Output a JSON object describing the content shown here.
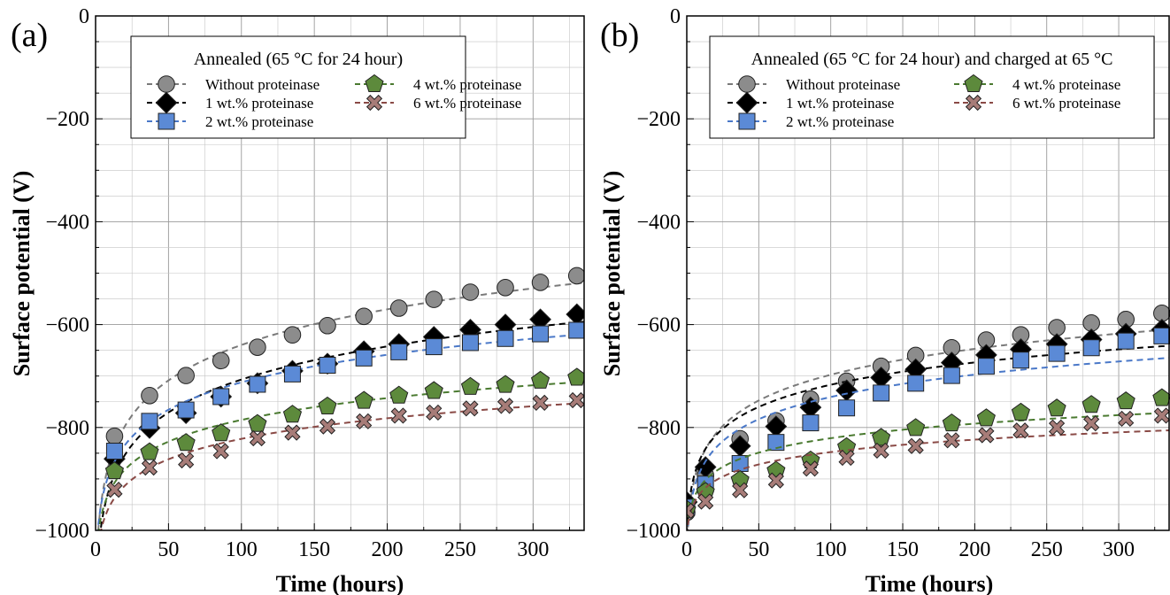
{
  "chart_data": [
    {
      "type": "scatter",
      "panel_label": "(a)",
      "title": "Annealed (65 °C for 24 hour)",
      "xlabel": "Time (hours)",
      "ylabel": "Surface potential (V)",
      "xlim": [
        0,
        335
      ],
      "ylim": [
        -1000,
        0
      ],
      "xticks": [
        0,
        50,
        100,
        150,
        200,
        250,
        300
      ],
      "yticks": [
        0,
        -200,
        -400,
        -600,
        -800,
        -1000
      ],
      "grid": true,
      "legend_position": "top-right",
      "series": [
        {
          "name": "Without proteinase",
          "marker": "circle",
          "color": "#8c8c8c",
          "line_color": "#7a7a7a",
          "x": [
            13,
            37,
            62,
            86,
            111,
            135,
            159,
            184,
            208,
            232,
            257,
            281,
            305,
            330
          ],
          "y": [
            -817,
            -738,
            -699,
            -670,
            -644,
            -620,
            -602,
            -584,
            -568,
            -551,
            -537,
            -528,
            -518,
            -505
          ]
        },
        {
          "name": "1 wt.% proteinase",
          "marker": "diamond",
          "color": "#000000",
          "line_color": "#000000",
          "x": [
            13,
            37,
            62,
            86,
            111,
            135,
            159,
            184,
            208,
            232,
            257,
            281,
            305,
            330
          ],
          "y": [
            -861,
            -801,
            -772,
            -740,
            -714,
            -690,
            -676,
            -652,
            -638,
            -624,
            -610,
            -600,
            -590,
            -580
          ]
        },
        {
          "name": "2 wt.% proteinase",
          "marker": "square",
          "color": "#5b8ad6",
          "line_color": "#4a78c8",
          "x": [
            13,
            37,
            62,
            86,
            111,
            135,
            159,
            184,
            208,
            232,
            257,
            281,
            305,
            330
          ],
          "y": [
            -846,
            -788,
            -766,
            -740,
            -716,
            -696,
            -679,
            -665,
            -653,
            -643,
            -635,
            -627,
            -618,
            -611
          ]
        },
        {
          "name": "4 wt.% proteinase",
          "marker": "pentagon",
          "color": "#5d8a3c",
          "line_color": "#4a7a30",
          "x": [
            13,
            37,
            62,
            86,
            111,
            135,
            159,
            184,
            208,
            232,
            257,
            281,
            305,
            330
          ],
          "y": [
            -885,
            -848,
            -830,
            -811,
            -793,
            -775,
            -759,
            -748,
            -738,
            -729,
            -721,
            -717,
            -709,
            -703
          ]
        },
        {
          "name": "6 wt.% proteinase",
          "marker": "x",
          "color": "#a77c78",
          "line_color": "#8a4a46",
          "x": [
            13,
            37,
            62,
            86,
            111,
            135,
            159,
            184,
            208,
            232,
            257,
            281,
            305,
            330
          ],
          "y": [
            -921,
            -878,
            -864,
            -846,
            -821,
            -810,
            -798,
            -788,
            -777,
            -771,
            -763,
            -758,
            -752,
            -747
          ]
        }
      ]
    },
    {
      "type": "scatter",
      "panel_label": "(b)",
      "title": "Annealed (65 °C for 24 hour) and charged at 65 °C",
      "xlabel": "Time (hours)",
      "ylabel": "Surface potential (V)",
      "xlim": [
        0,
        335
      ],
      "ylim": [
        -1000,
        0
      ],
      "xticks": [
        0,
        50,
        100,
        150,
        200,
        250,
        300
      ],
      "yticks": [
        0,
        -200,
        -400,
        -600,
        -800,
        -1000
      ],
      "grid": true,
      "legend_position": "top-right",
      "series": [
        {
          "name": "Without proteinase",
          "marker": "circle",
          "color": "#8c8c8c",
          "line_color": "#7a7a7a",
          "x": [
            0,
            13,
            37,
            62,
            86,
            111,
            135,
            159,
            184,
            208,
            232,
            257,
            281,
            305,
            330
          ],
          "y": [
            -965,
            -893,
            -822,
            -787,
            -745,
            -710,
            -681,
            -660,
            -645,
            -630,
            -620,
            -606,
            -597,
            -590,
            -578
          ]
        },
        {
          "name": "1 wt.% proteinase",
          "marker": "diamond",
          "color": "#000000",
          "line_color": "#000000",
          "x": [
            0,
            13,
            37,
            62,
            86,
            111,
            135,
            159,
            184,
            208,
            232,
            257,
            281,
            305,
            330
          ],
          "y": [
            -945,
            -877,
            -836,
            -798,
            -761,
            -728,
            -703,
            -687,
            -674,
            -659,
            -648,
            -638,
            -629,
            -618,
            -610
          ]
        },
        {
          "name": "2 wt.% proteinase",
          "marker": "square",
          "color": "#5b8ad6",
          "line_color": "#4a78c8",
          "x": [
            0,
            13,
            37,
            62,
            86,
            111,
            135,
            159,
            184,
            208,
            232,
            257,
            281,
            305,
            330
          ],
          "y": [
            -955,
            -910,
            -870,
            -829,
            -791,
            -762,
            -733,
            -714,
            -699,
            -681,
            -669,
            -656,
            -645,
            -632,
            -622
          ]
        },
        {
          "name": "4 wt.% proteinase",
          "marker": "pentagon",
          "color": "#5d8a3c",
          "line_color": "#4a7a30",
          "x": [
            0,
            13,
            37,
            62,
            86,
            111,
            135,
            159,
            184,
            208,
            232,
            257,
            281,
            305,
            330
          ],
          "y": [
            -960,
            -925,
            -902,
            -884,
            -864,
            -838,
            -820,
            -801,
            -792,
            -782,
            -771,
            -763,
            -756,
            -749,
            -743
          ]
        },
        {
          "name": "6 wt.% proteinase",
          "marker": "x",
          "color": "#a77c78",
          "line_color": "#8a4a46",
          "x": [
            0,
            13,
            37,
            62,
            86,
            111,
            135,
            159,
            184,
            208,
            232,
            257,
            281,
            305,
            330
          ],
          "y": [
            -962,
            -944,
            -922,
            -903,
            -880,
            -859,
            -845,
            -836,
            -825,
            -815,
            -806,
            -800,
            -792,
            -783,
            -777
          ]
        }
      ]
    }
  ]
}
